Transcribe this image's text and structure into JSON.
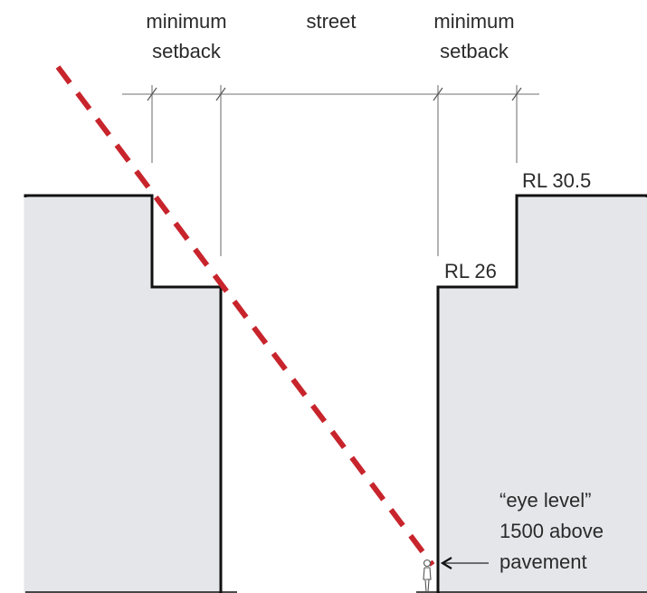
{
  "diagram": {
    "dimension_labels": {
      "left_setback_line1": "minimum",
      "left_setback_line2": "setback",
      "street": "street",
      "right_setback_line1": "minimum",
      "right_setback_line2": "setback"
    },
    "levels": {
      "upper": "RL 30.5",
      "lower": "RL 26"
    },
    "eye_level_note": {
      "line1": "“eye level”",
      "line2": "1500 above",
      "line3": "pavement"
    },
    "colors": {
      "sightline": "#c8242c",
      "building_fill": "#e4e6ea",
      "outline": "#111111",
      "dimension_line": "#8c8c8c"
    }
  }
}
